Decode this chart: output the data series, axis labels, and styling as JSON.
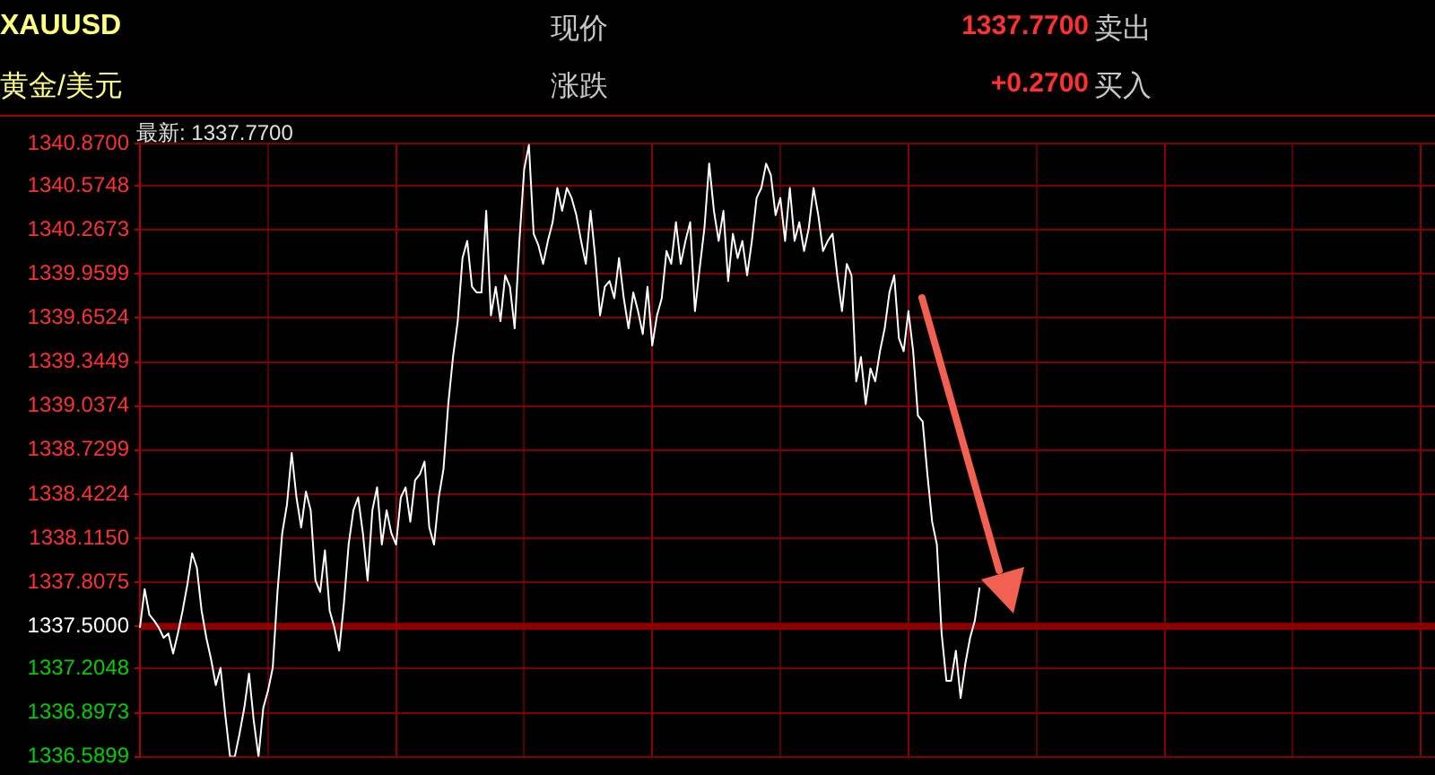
{
  "chart_data": {
    "type": "line",
    "title": "XAUUSD",
    "subtitle": "黄金/美元",
    "annotations": [
      "现价",
      "1337.7700",
      "卖出",
      "涨跌",
      "+0.2700",
      "买入",
      "最新: 1337.7700"
    ],
    "categories": [
      null,
      null,
      null,
      null,
      null,
      null,
      null,
      null,
      null,
      null,
      null,
      null,
      null,
      null,
      null,
      null,
      null,
      null,
      null,
      null,
      null,
      null,
      null,
      null,
      null,
      null,
      null,
      null,
      null,
      null,
      null,
      null,
      null,
      null,
      null,
      null,
      null,
      null,
      null,
      null,
      null,
      null,
      null,
      null,
      null,
      null,
      null,
      null,
      null,
      null,
      null,
      null,
      null,
      null,
      null,
      null,
      null,
      null,
      null,
      null,
      null,
      null,
      null,
      null,
      null,
      null,
      null,
      null,
      null,
      null,
      null,
      null,
      null,
      null,
      null,
      null,
      null,
      null,
      null,
      null,
      null,
      null,
      null,
      null,
      null,
      null,
      null,
      null,
      null,
      null,
      null,
      null,
      null,
      null,
      null,
      null,
      null,
      null,
      null,
      null,
      null,
      null,
      null,
      null,
      null,
      null,
      null,
      null,
      null,
      null,
      null,
      null,
      null,
      null,
      null,
      null,
      null,
      null,
      null,
      null,
      null,
      null,
      null,
      null,
      null,
      null,
      null,
      null,
      null,
      null,
      null,
      null,
      null,
      null,
      null,
      null,
      null,
      null,
      null,
      null,
      null,
      null,
      null,
      null,
      null,
      null,
      null,
      null,
      null,
      null,
      null,
      null,
      null,
      null,
      null,
      null,
      null,
      null,
      null,
      null,
      null,
      null,
      null,
      null,
      null,
      null,
      null,
      null,
      null,
      null,
      null,
      null,
      null,
      null,
      null,
      null,
      null,
      null,
      null,
      null,
      null,
      null,
      null,
      null,
      null,
      null,
      null,
      null,
      null,
      null,
      null,
      null,
      null,
      null,
      null,
      null,
      null,
      null,
      null,
      null,
      null,
      null,
      null,
      null,
      null,
      null,
      null,
      null,
      null,
      null,
      null,
      null,
      null,
      null,
      null,
      null,
      null,
      null,
      null,
      null,
      null,
      null,
      null,
      null,
      null,
      null,
      null,
      null,
      null,
      null,
      null,
      null,
      null,
      null,
      null,
      null,
      null,
      null,
      null,
      null,
      null,
      null,
      null,
      null,
      null,
      null,
      null,
      null,
      null,
      null,
      null,
      null,
      null,
      null,
      null,
      null,
      null,
      null,
      null,
      null,
      null,
      null,
      null,
      null,
      null,
      null,
      null,
      null,
      null,
      null,
      null,
      null,
      null,
      null
    ],
    "series": [
      {
        "color": "#ffffff",
        "values": [
          1337.49,
          1337.76,
          1337.58,
          1337.54,
          1337.49,
          1337.42,
          1337.45,
          1337.31,
          1337.45,
          1337.61,
          1337.79,
          1338.01,
          1337.91,
          1337.61,
          1337.42,
          1337.27,
          1337.09,
          1337.21,
          1336.88,
          1336.59,
          1336.59,
          1336.75,
          1336.93,
          1337.17,
          1336.84,
          1336.59,
          1336.93,
          1337.05,
          1337.21,
          1337.74,
          1338.15,
          1338.35,
          1338.71,
          1338.4,
          1338.19,
          1338.44,
          1338.31,
          1337.82,
          1337.74,
          1338.03,
          1337.61,
          1337.49,
          1337.33,
          1337.66,
          1338.07,
          1338.31,
          1338.4,
          1338.15,
          1337.82,
          1338.31,
          1338.47,
          1338.07,
          1338.31,
          1338.15,
          1338.07,
          1338.4,
          1338.47,
          1338.23,
          1338.52,
          1338.56,
          1338.65,
          1338.19,
          1338.07,
          1338.4,
          1338.6,
          1339.05,
          1339.38,
          1339.63,
          1340.07,
          1340.19,
          1339.87,
          1339.83,
          1339.83,
          1340.4,
          1339.67,
          1339.87,
          1339.63,
          1339.95,
          1339.87,
          1339.58,
          1340.19,
          1340.69,
          1340.86,
          1340.24,
          1340.16,
          1340.03,
          1340.19,
          1340.32,
          1340.56,
          1340.4,
          1340.56,
          1340.49,
          1340.37,
          1340.19,
          1340.03,
          1340.4,
          1340.07,
          1339.67,
          1339.87,
          1339.91,
          1339.79,
          1340.07,
          1339.79,
          1339.58,
          1339.83,
          1339.7,
          1339.54,
          1339.87,
          1339.46,
          1339.67,
          1339.79,
          1340.12,
          1340.03,
          1340.32,
          1340.03,
          1340.19,
          1340.32,
          1339.7,
          1340.0,
          1340.28,
          1340.73,
          1340.4,
          1340.19,
          1340.4,
          1339.91,
          1340.24,
          1340.07,
          1340.19,
          1339.95,
          1340.19,
          1340.49,
          1340.56,
          1340.73,
          1340.65,
          1340.37,
          1340.49,
          1340.19,
          1340.56,
          1340.19,
          1340.32,
          1340.12,
          1340.28,
          1340.56,
          1340.37,
          1340.12,
          1340.19,
          1340.24,
          1339.95,
          1339.7,
          1340.03,
          1339.95,
          1339.21,
          1339.38,
          1339.05,
          1339.3,
          1339.21,
          1339.42,
          1339.58,
          1339.83,
          1339.95,
          1339.51,
          1339.42,
          1339.7,
          1339.42,
          1338.97,
          1338.93,
          1338.56,
          1338.23,
          1338.07,
          1337.45,
          1337.12,
          1337.12,
          1337.33,
          1337.0,
          1337.24,
          1337.42,
          1337.54,
          1337.77,
          null,
          null,
          null,
          null,
          null,
          null,
          null,
          null,
          null,
          null,
          null,
          null,
          null,
          null,
          null,
          null,
          null,
          null,
          null,
          null,
          null,
          null,
          null,
          null,
          null,
          null,
          null,
          null,
          null,
          null,
          null,
          null,
          null,
          null,
          null,
          null,
          null,
          null,
          null,
          null,
          null,
          null,
          null,
          null,
          null,
          null,
          null,
          null,
          null,
          null,
          null,
          null,
          null,
          null,
          null,
          null,
          null,
          null,
          null,
          null,
          null,
          null,
          null,
          null,
          null,
          null,
          null,
          null,
          null,
          null,
          null,
          null,
          null,
          null,
          null,
          null,
          null,
          null,
          null,
          null,
          null,
          null,
          null,
          null,
          null,
          null,
          null,
          null,
          null,
          null,
          null,
          null,
          null,
          null,
          null,
          null
        ]
      }
    ],
    "ylim": [
      1336.5899,
      1340.87
    ],
    "yticks": [
      {
        "value": 1340.87,
        "label": "1340.8700"
      },
      1340.5748,
      1340.2673,
      1339.9599,
      1339.6524,
      1339.3449,
      1339.0374,
      1338.7299,
      1338.4224,
      {
        "value": 1338.115,
        "label": "1338.1150"
      },
      1337.8075,
      {
        "value": 1337.5,
        "label": "1337.5000"
      },
      1337.2048,
      1336.8973,
      1336.5899
    ],
    "ref_lines": [
      {
        "axis": "y",
        "value": 1337.5,
        "color": "#8b0000"
      }
    ],
    "grid": true,
    "legend": false,
    "tick_labels": "y",
    "marker": "none",
    "line_style": "solid"
  }
}
